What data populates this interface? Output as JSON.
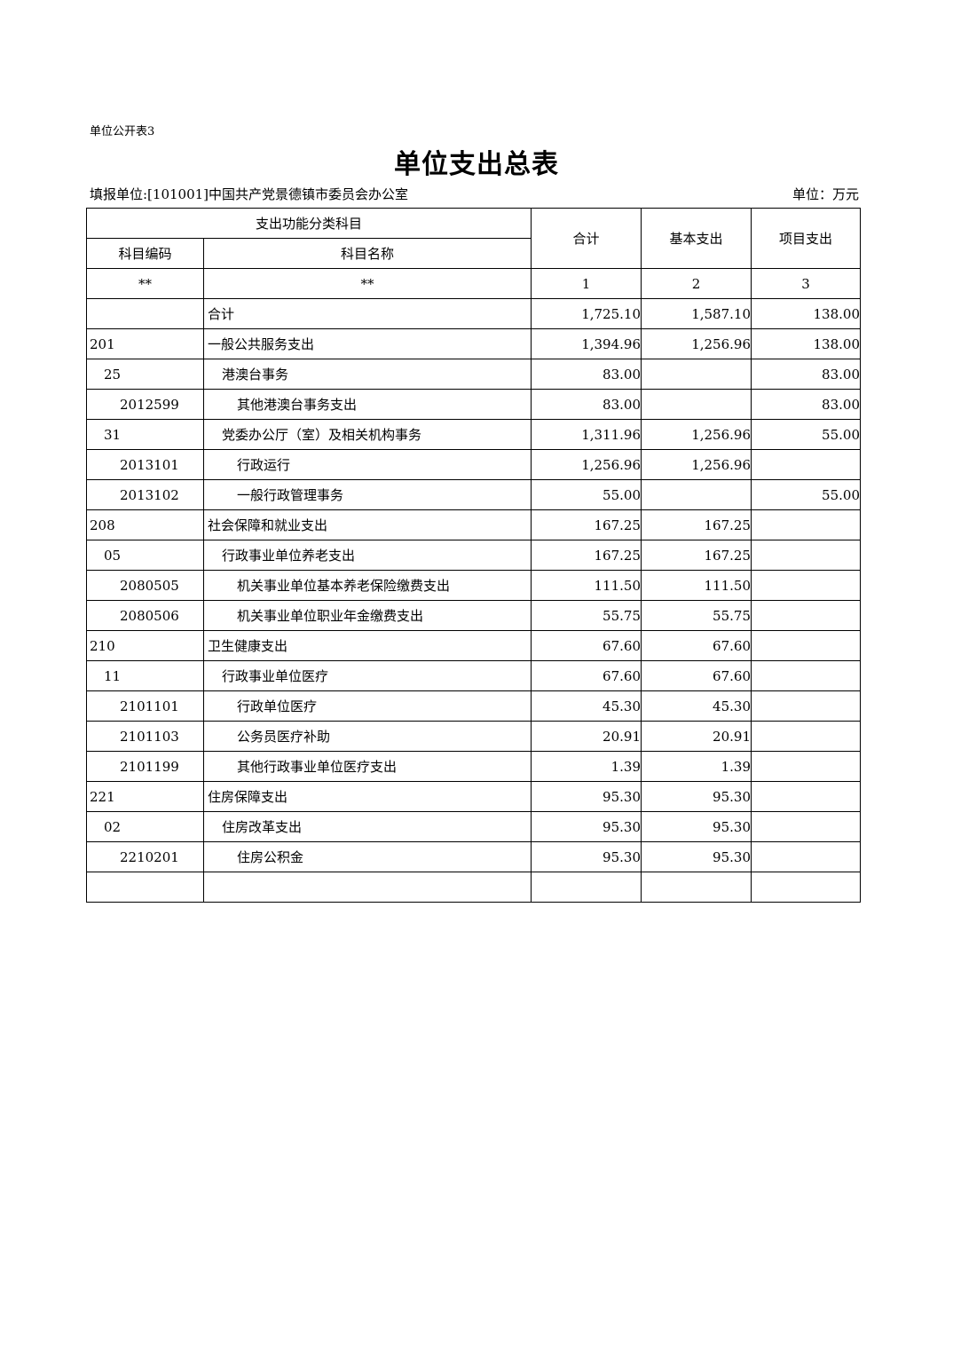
{
  "form_no": "单位公开表3",
  "title": "单位支出总表",
  "filler": "填报单位:[101001]中国共产党景德镇市委员会办公室",
  "unit": "单位：万元",
  "header": {
    "group": "支出功能分类科目",
    "code": "科目编码",
    "name": "科目名称",
    "total": "合计",
    "basic": "基本支出",
    "project": "项目支出",
    "idx": [
      "**",
      "**",
      "1",
      "2",
      "3"
    ]
  },
  "rows": [
    {
      "level": 0,
      "code": "",
      "name": "合计",
      "total": "1,725.10",
      "basic": "1,587.10",
      "project": "138.00"
    },
    {
      "level": 0,
      "code": "201",
      "name": "一般公共服务支出",
      "total": "1,394.96",
      "basic": "1,256.96",
      "project": "138.00"
    },
    {
      "level": 1,
      "code": "25",
      "name": "港澳台事务",
      "total": "83.00",
      "basic": "",
      "project": "83.00"
    },
    {
      "level": 2,
      "code": "2012599",
      "name": "其他港澳台事务支出",
      "total": "83.00",
      "basic": "",
      "project": "83.00"
    },
    {
      "level": 1,
      "code": "31",
      "name": "党委办公厅（室）及相关机构事务",
      "total": "1,311.96",
      "basic": "1,256.96",
      "project": "55.00"
    },
    {
      "level": 2,
      "code": "2013101",
      "name": "行政运行",
      "total": "1,256.96",
      "basic": "1,256.96",
      "project": ""
    },
    {
      "level": 2,
      "code": "2013102",
      "name": "一般行政管理事务",
      "total": "55.00",
      "basic": "",
      "project": "55.00"
    },
    {
      "level": 0,
      "code": "208",
      "name": "社会保障和就业支出",
      "total": "167.25",
      "basic": "167.25",
      "project": ""
    },
    {
      "level": 1,
      "code": "05",
      "name": "行政事业单位养老支出",
      "total": "167.25",
      "basic": "167.25",
      "project": ""
    },
    {
      "level": 2,
      "code": "2080505",
      "name": "机关事业单位基本养老保险缴费支出",
      "total": "111.50",
      "basic": "111.50",
      "project": ""
    },
    {
      "level": 2,
      "code": "2080506",
      "name": "机关事业单位职业年金缴费支出",
      "total": "55.75",
      "basic": "55.75",
      "project": ""
    },
    {
      "level": 0,
      "code": "210",
      "name": "卫生健康支出",
      "total": "67.60",
      "basic": "67.60",
      "project": ""
    },
    {
      "level": 1,
      "code": "11",
      "name": "行政事业单位医疗",
      "total": "67.60",
      "basic": "67.60",
      "project": ""
    },
    {
      "level": 2,
      "code": "2101101",
      "name": "行政单位医疗",
      "total": "45.30",
      "basic": "45.30",
      "project": ""
    },
    {
      "level": 2,
      "code": "2101103",
      "name": "公务员医疗补助",
      "total": "20.91",
      "basic": "20.91",
      "project": ""
    },
    {
      "level": 2,
      "code": "2101199",
      "name": "其他行政事业单位医疗支出",
      "total": "1.39",
      "basic": "1.39",
      "project": ""
    },
    {
      "level": 0,
      "code": "221",
      "name": "住房保障支出",
      "total": "95.30",
      "basic": "95.30",
      "project": ""
    },
    {
      "level": 1,
      "code": "02",
      "name": "住房改革支出",
      "total": "95.30",
      "basic": "95.30",
      "project": ""
    },
    {
      "level": 2,
      "code": "2210201",
      "name": "住房公积金",
      "total": "95.30",
      "basic": "95.30",
      "project": ""
    },
    {
      "level": 0,
      "code": "",
      "name": "",
      "total": "",
      "basic": "",
      "project": ""
    }
  ]
}
